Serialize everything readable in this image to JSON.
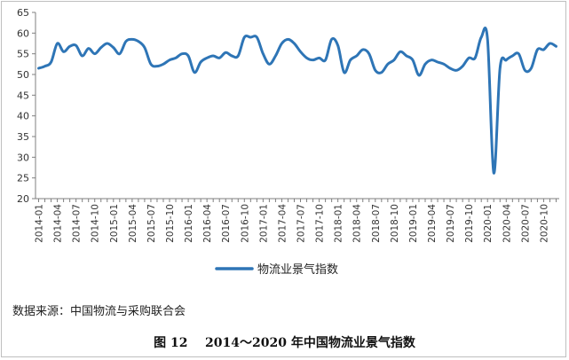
{
  "chart_data": {
    "type": "line",
    "title": "",
    "xlabel": "",
    "ylabel": "",
    "ylim": [
      20,
      65
    ],
    "yticks": [
      20,
      25,
      30,
      35,
      40,
      45,
      50,
      55,
      60,
      65
    ],
    "grid": false,
    "legend_position": "bottom-center",
    "series": [
      {
        "name": "物流业景气指数",
        "color": "#2e75b6",
        "x": [
          "2014-01",
          "2014-02",
          "2014-03",
          "2014-04",
          "2014-05",
          "2014-06",
          "2014-07",
          "2014-08",
          "2014-09",
          "2014-10",
          "2014-11",
          "2014-12",
          "2015-01",
          "2015-02",
          "2015-03",
          "2015-04",
          "2015-05",
          "2015-06",
          "2015-07",
          "2015-08",
          "2015-09",
          "2015-10",
          "2015-11",
          "2015-12",
          "2016-01",
          "2016-02",
          "2016-03",
          "2016-04",
          "2016-05",
          "2016-06",
          "2016-07",
          "2016-08",
          "2016-09",
          "2016-10",
          "2016-11",
          "2016-12",
          "2017-01",
          "2017-02",
          "2017-03",
          "2017-04",
          "2017-05",
          "2017-06",
          "2017-07",
          "2017-08",
          "2017-09",
          "2017-10",
          "2017-11",
          "2017-12",
          "2018-01",
          "2018-02",
          "2018-03",
          "2018-04",
          "2018-05",
          "2018-06",
          "2018-07",
          "2018-08",
          "2018-09",
          "2018-10",
          "2018-11",
          "2018-12",
          "2019-01",
          "2019-02",
          "2019-03",
          "2019-04",
          "2019-05",
          "2019-06",
          "2019-07",
          "2019-08",
          "2019-09",
          "2019-10",
          "2019-11",
          "2019-12",
          "2020-01",
          "2020-02",
          "2020-03",
          "2020-04",
          "2020-05",
          "2020-06",
          "2020-07",
          "2020-08",
          "2020-09",
          "2020-10",
          "2020-11",
          "2020-12"
        ],
        "values": [
          51.5,
          52.0,
          53.0,
          57.5,
          55.5,
          56.8,
          57.0,
          54.5,
          56.3,
          55.0,
          56.5,
          57.5,
          56.5,
          55.0,
          58.0,
          58.5,
          58.0,
          56.5,
          52.5,
          52.0,
          52.5,
          53.5,
          54.0,
          55.0,
          54.5,
          50.5,
          53.0,
          54.0,
          54.5,
          54.0,
          55.3,
          54.5,
          54.5,
          59.0,
          59.0,
          59.0,
          55.0,
          52.5,
          54.5,
          57.5,
          58.5,
          57.5,
          55.5,
          54.0,
          53.5,
          54.0,
          53.5,
          58.5,
          57.0,
          50.5,
          53.5,
          54.5,
          56.0,
          55.0,
          51.0,
          50.5,
          52.5,
          53.5,
          55.5,
          54.5,
          53.5,
          49.8,
          52.5,
          53.5,
          53.0,
          52.5,
          51.5,
          51.0,
          52.0,
          54.0,
          54.0,
          59.0,
          58.5,
          26.2,
          51.5,
          53.5,
          54.5,
          55.0,
          51.0,
          51.5,
          56.0,
          56.0,
          57.5,
          56.8
        ]
      }
    ]
  },
  "legend_label": "物流业景气指数",
  "source_text": "数据来源：中国物流与采购联合会",
  "caption_text": "图 12    2014～2020 年中国物流业景气指数"
}
